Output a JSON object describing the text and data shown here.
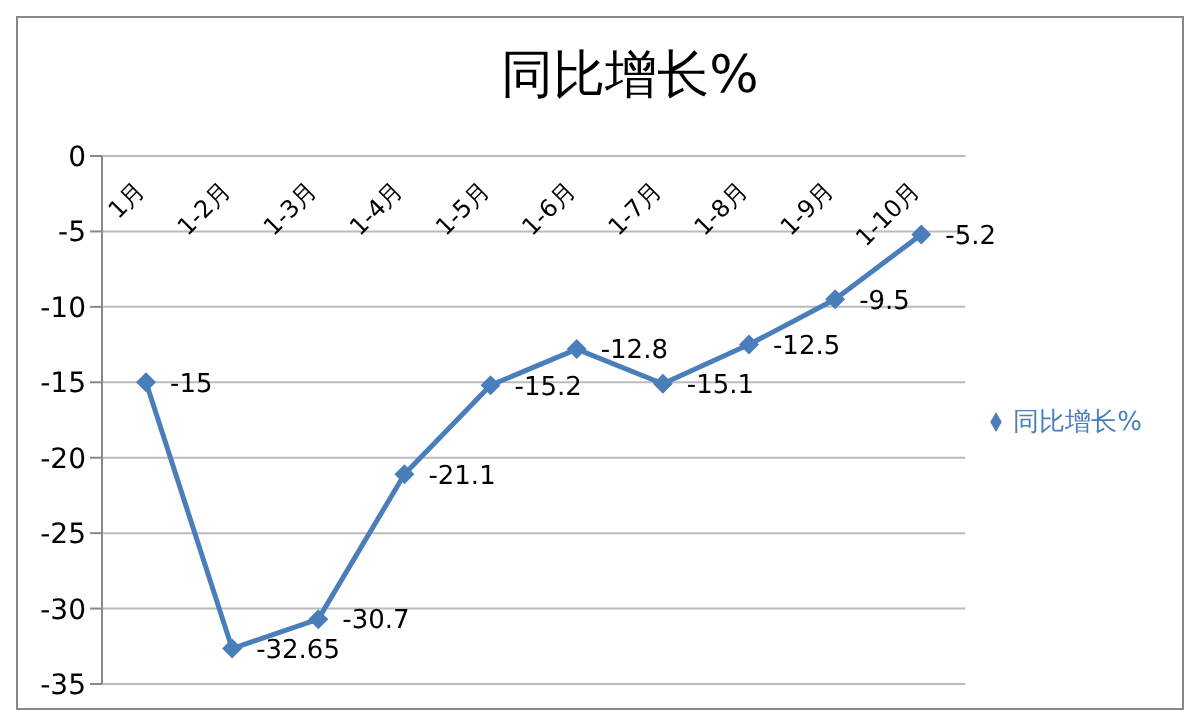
{
  "chart_data": {
    "type": "line",
    "title": "同比增长%",
    "categories": [
      "1月",
      "1-2月",
      "1-3月",
      "1-4月",
      "1-5月",
      "1-6月",
      "1-7月",
      "1-8月",
      "1-9月",
      "1-10月"
    ],
    "series": [
      {
        "name": "同比增长%",
        "color": "#4a7ebb",
        "values": [
          -15,
          -32.65,
          -30.7,
          -21.1,
          -15.2,
          -12.8,
          -15.1,
          -12.5,
          -9.5,
          -5.2
        ]
      }
    ],
    "ylim": [
      -35,
      0
    ],
    "yticks": [
      0,
      -5,
      -10,
      -15,
      -20,
      -25,
      -30,
      -35
    ],
    "grid": "y",
    "legend": "right",
    "marker": "diamond",
    "data_labels": true
  }
}
